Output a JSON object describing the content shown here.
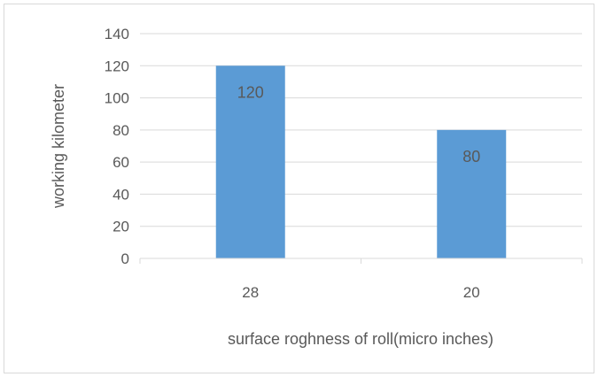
{
  "chart_data": {
    "type": "bar",
    "categories": [
      "28",
      "20"
    ],
    "values": [
      120,
      80
    ],
    "data_labels": [
      "120",
      "80"
    ],
    "xlabel": "surface roghness of roll(micro inches)",
    "ylabel": "working kilometer",
    "ylim": [
      0,
      140
    ],
    "yticks": [
      "0",
      "20",
      "40",
      "60",
      "80",
      "100",
      "120",
      "140"
    ],
    "grid": true,
    "legend": "none",
    "bar_color": "#5b9bd5",
    "grid_color": "#d9d9d9",
    "text_color": "#595959"
  }
}
